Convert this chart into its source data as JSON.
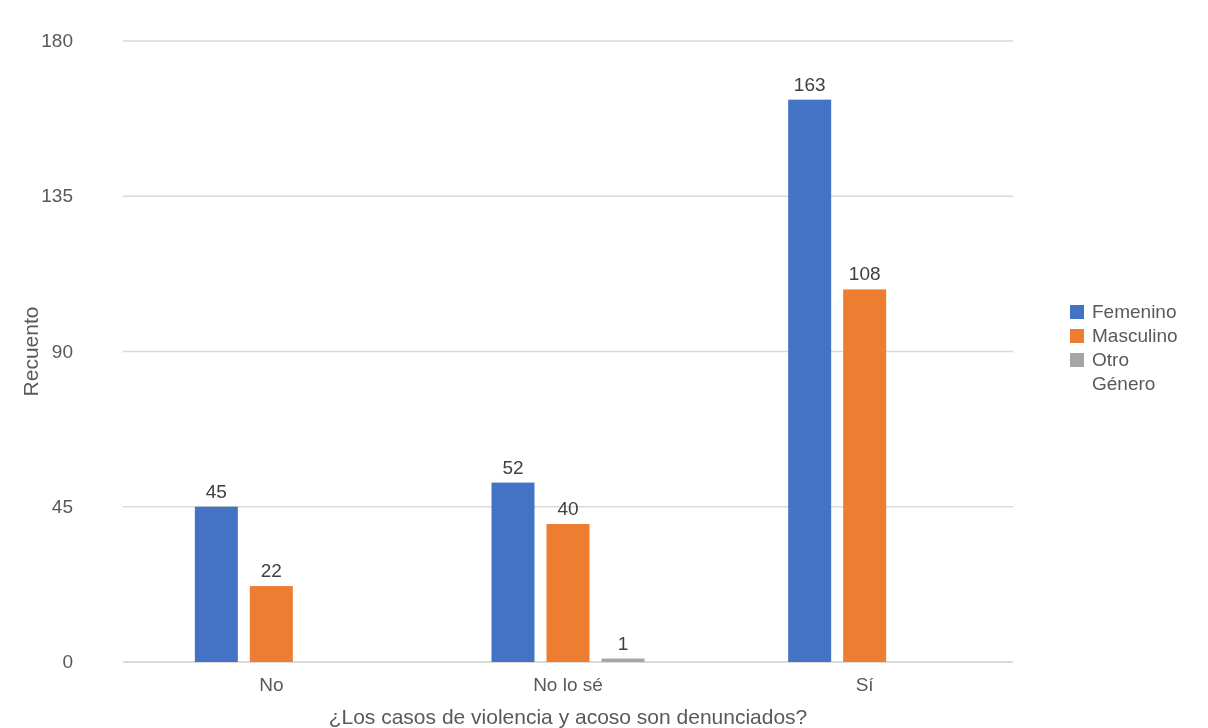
{
  "chart_data": {
    "type": "bar",
    "xlabel": "¿Los casos de violencia y acoso son denunciados?",
    "ylabel": "Recuento",
    "categories": [
      "No",
      "No lo sé",
      "Sí"
    ],
    "series": [
      {
        "name": "Femenino",
        "color": "#4472c4",
        "values": [
          45,
          52,
          163
        ]
      },
      {
        "name": "Masculino",
        "color": "#ed7d31",
        "values": [
          22,
          40,
          108
        ]
      },
      {
        "name": "Otro Género",
        "color": "#a5a5a5",
        "values": [
          null,
          1,
          null
        ]
      }
    ],
    "ylim": [
      0,
      180
    ],
    "yticks": [
      0,
      45,
      90,
      135,
      180
    ],
    "grid": "y",
    "legend": "right",
    "data_labels": true
  }
}
